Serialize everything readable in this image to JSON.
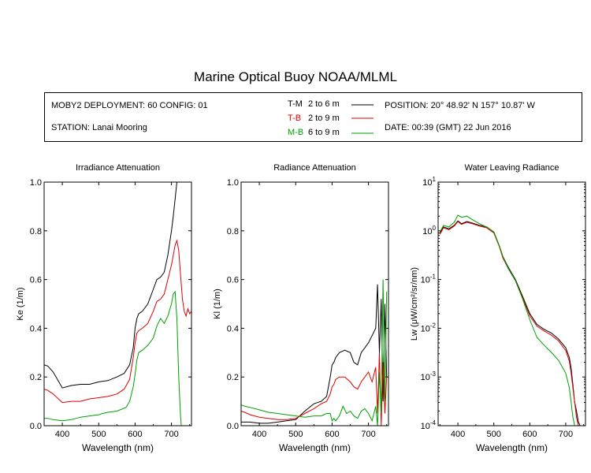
{
  "title": "Marine Optical Buoy NOAA/MLML",
  "header": {
    "deployment": "MOBY2 DEPLOYMENT: 60 CONFIG: 01",
    "station": "STATION: Lanai Mooring",
    "position": "POSITION: 20° 48.92' N   157° 10.87' W",
    "date": "DATE: 00:39 (GMT) 22 Jun 2016",
    "depth_pairs": [
      {
        "code": "T-M",
        "range": "2 to 6  m",
        "color": "#000000"
      },
      {
        "code": "T-B",
        "range": "2 to 9  m",
        "color": "#dd0000"
      },
      {
        "code": "M-B",
        "range": "6 to 9  m",
        "color": "#00a000"
      }
    ]
  },
  "chart_data": [
    {
      "type": "line",
      "title": "Irradiance Attenuation",
      "xlabel": "Wavelength (nm)",
      "ylabel": "Ke  (1/m)",
      "xlim": [
        350,
        755
      ],
      "ylim": [
        0,
        1.0
      ],
      "xticks": [
        400,
        500,
        600,
        700
      ],
      "yticks": [
        "0.0",
        "0.2",
        "0.4",
        "0.6",
        "0.8",
        "1.0"
      ],
      "yscale": "linear",
      "series": [
        {
          "code": "T-M",
          "color": "#000000",
          "x": [
            350,
            360,
            375,
            400,
            425,
            450,
            475,
            500,
            525,
            550,
            570,
            585,
            595,
            600,
            605,
            610,
            620,
            635,
            650,
            660,
            670,
            680,
            690,
            700,
            705,
            710,
            715,
            720,
            725
          ],
          "y": [
            0.25,
            0.245,
            0.22,
            0.155,
            0.165,
            0.17,
            0.17,
            0.18,
            0.185,
            0.2,
            0.215,
            0.25,
            0.32,
            0.4,
            0.44,
            0.46,
            0.47,
            0.5,
            0.56,
            0.6,
            0.61,
            0.63,
            0.7,
            0.8,
            0.86,
            0.93,
            1.0,
            1.0,
            1.0
          ]
        },
        {
          "code": "T-B",
          "color": "#dd0000",
          "x": [
            350,
            360,
            375,
            400,
            425,
            450,
            475,
            500,
            525,
            550,
            570,
            585,
            595,
            600,
            605,
            610,
            620,
            635,
            650,
            660,
            670,
            680,
            690,
            700,
            705,
            710,
            715,
            720,
            725,
            730,
            735,
            740,
            745,
            750,
            755
          ],
          "y": [
            0.15,
            0.145,
            0.13,
            0.095,
            0.1,
            0.1,
            0.11,
            0.115,
            0.12,
            0.13,
            0.15,
            0.19,
            0.28,
            0.34,
            0.38,
            0.39,
            0.4,
            0.42,
            0.47,
            0.51,
            0.52,
            0.54,
            0.6,
            0.66,
            0.7,
            0.74,
            0.76,
            0.72,
            0.62,
            0.52,
            0.47,
            0.45,
            0.48,
            0.46,
            0.47
          ]
        },
        {
          "code": "M-B",
          "color": "#00a000",
          "x": [
            350,
            360,
            375,
            400,
            425,
            450,
            475,
            500,
            510,
            525,
            550,
            575,
            585,
            595,
            600,
            605,
            610,
            620,
            635,
            650,
            660,
            670,
            680,
            690,
            700,
            705,
            710,
            715,
            720,
            725,
            727
          ],
          "y": [
            0.03,
            0.03,
            0.025,
            0.02,
            0.025,
            0.035,
            0.04,
            0.045,
            0.05,
            0.055,
            0.06,
            0.075,
            0.1,
            0.16,
            0.21,
            0.27,
            0.3,
            0.31,
            0.33,
            0.36,
            0.41,
            0.44,
            0.42,
            0.45,
            0.5,
            0.54,
            0.55,
            0.44,
            0.2,
            0.04,
            0.0
          ]
        }
      ]
    },
    {
      "type": "line",
      "title": "Radiance Attenuation",
      "xlabel": "Wavelength (nm)",
      "ylabel": "Kl  (1/m)",
      "xlim": [
        350,
        755
      ],
      "ylim": [
        0,
        1.0
      ],
      "xticks": [
        400,
        500,
        600,
        700
      ],
      "yticks": [
        "0.0",
        "0.2",
        "0.4",
        "0.6",
        "0.8",
        "1.0"
      ],
      "yscale": "linear",
      "series": [
        {
          "code": "T-M",
          "color": "#000000",
          "x": [
            350,
            360,
            375,
            400,
            425,
            450,
            475,
            500,
            525,
            550,
            570,
            585,
            595,
            600,
            605,
            610,
            620,
            635,
            650,
            660,
            670,
            680,
            690,
            700,
            710,
            720,
            725,
            730,
            735,
            740,
            745,
            750
          ],
          "y": [
            0.015,
            0.015,
            0.015,
            0.01,
            0.01,
            0.015,
            0.02,
            0.025,
            0.06,
            0.09,
            0.1,
            0.12,
            0.2,
            0.25,
            0.26,
            0.28,
            0.3,
            0.31,
            0.3,
            0.26,
            0.25,
            0.3,
            0.32,
            0.34,
            0.37,
            0.4,
            0.58,
            0.3,
            0.52,
            0.1,
            0.5,
            0.2
          ]
        },
        {
          "code": "T-B",
          "color": "#dd0000",
          "x": [
            350,
            360,
            375,
            400,
            425,
            450,
            475,
            500,
            525,
            550,
            570,
            585,
            595,
            600,
            605,
            610,
            620,
            635,
            650,
            660,
            670,
            680,
            690,
            700,
            710,
            720,
            725,
            730,
            735,
            740,
            745,
            750
          ],
          "y": [
            0.06,
            0.055,
            0.045,
            0.035,
            0.03,
            0.025,
            0.025,
            0.03,
            0.05,
            0.07,
            0.09,
            0.1,
            0.13,
            0.16,
            0.17,
            0.19,
            0.2,
            0.2,
            0.18,
            0.16,
            0.15,
            0.18,
            0.2,
            0.22,
            0.18,
            0.24,
            0.05,
            0.3,
            0.0,
            0.26,
            0.05,
            0.2
          ]
        },
        {
          "code": "M-B",
          "color": "#00a000",
          "x": [
            350,
            360,
            375,
            400,
            425,
            450,
            475,
            500,
            525,
            550,
            570,
            585,
            595,
            600,
            605,
            610,
            620,
            630,
            640,
            650,
            660,
            670,
            680,
            690,
            700,
            710,
            720,
            725,
            730,
            735,
            740,
            745,
            750
          ],
          "y": [
            0.085,
            0.08,
            0.075,
            0.065,
            0.055,
            0.05,
            0.045,
            0.04,
            0.035,
            0.04,
            0.04,
            0.05,
            0.05,
            0.02,
            0.03,
            0.02,
            0.04,
            0.08,
            0.05,
            0.06,
            0.04,
            0.03,
            0.06,
            0.07,
            0.05,
            0.02,
            0.08,
            0.0,
            0.22,
            0.05,
            0.6,
            0.1,
            0.55
          ]
        }
      ]
    },
    {
      "type": "line",
      "title": "Water Leaving Radiance",
      "xlabel": "Wavelength (nm)",
      "ylabel": "Lw  (μW/cm²/sr/nm)",
      "xlim": [
        345,
        755
      ],
      "ylim": [
        0.0001,
        10
      ],
      "xticks": [
        400,
        500,
        600,
        700
      ],
      "yticks": [
        "10-4",
        "10-3",
        "10-2",
        "10-1",
        "100",
        "101"
      ],
      "yscale": "log",
      "series": [
        {
          "code": "T-M",
          "color": "#000000",
          "x": [
            350,
            360,
            375,
            390,
            400,
            410,
            425,
            440,
            460,
            480,
            500,
            515,
            525,
            540,
            560,
            580,
            600,
            620,
            640,
            660,
            680,
            700,
            710,
            715,
            720,
            725,
            730,
            735,
            740
          ],
          "y": [
            0.9,
            1.2,
            1.1,
            1.3,
            1.6,
            1.4,
            1.55,
            1.45,
            1.3,
            1.2,
            0.95,
            0.5,
            0.3,
            0.18,
            0.1,
            0.045,
            0.02,
            0.012,
            0.0095,
            0.008,
            0.006,
            0.004,
            0.0025,
            0.0015,
            0.0007,
            0.0003,
            0.0002,
            0.00012,
            0.0001
          ]
        },
        {
          "code": "T-B",
          "color": "#dd0000",
          "x": [
            350,
            360,
            375,
            390,
            400,
            410,
            425,
            440,
            460,
            480,
            500,
            515,
            525,
            540,
            560,
            580,
            600,
            620,
            640,
            660,
            680,
            700,
            710,
            715,
            720,
            725,
            730,
            735
          ],
          "y": [
            0.85,
            1.15,
            1.05,
            1.25,
            1.55,
            1.35,
            1.5,
            1.4,
            1.25,
            1.15,
            0.9,
            0.48,
            0.28,
            0.17,
            0.095,
            0.042,
            0.018,
            0.011,
            0.0088,
            0.0072,
            0.0055,
            0.0035,
            0.0021,
            0.0012,
            0.0006,
            0.0003,
            0.00015,
            0.0001
          ]
        },
        {
          "code": "M-B",
          "color": "#00a000",
          "x": [
            350,
            360,
            375,
            390,
            400,
            410,
            425,
            440,
            460,
            480,
            500,
            515,
            525,
            540,
            560,
            580,
            600,
            620,
            640,
            660,
            680,
            700,
            710,
            715,
            720,
            725
          ],
          "y": [
            0.95,
            1.3,
            1.2,
            1.5,
            2.1,
            1.9,
            2.0,
            1.7,
            1.4,
            1.2,
            0.95,
            0.5,
            0.3,
            0.17,
            0.095,
            0.04,
            0.015,
            0.0065,
            0.0045,
            0.0032,
            0.0022,
            0.0012,
            0.0006,
            0.0003,
            0.00015,
            0.0001
          ]
        }
      ]
    }
  ]
}
